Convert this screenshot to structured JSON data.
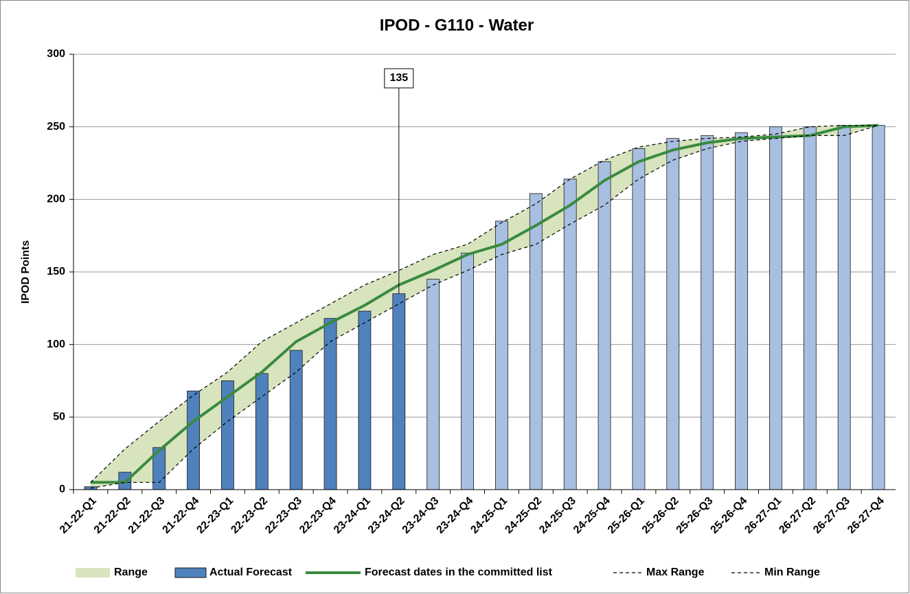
{
  "chart_data": {
    "type": "bar-line",
    "title": "IPOD - G110 - Water",
    "y_label": "IPOD Points",
    "categories": [
      "21-22-Q1",
      "21-22-Q2",
      "21-22-Q3",
      "21-22-Q4",
      "22-23-Q1",
      "22-23-Q2",
      "22-23-Q3",
      "22-23-Q4",
      "23-24-Q1",
      "23-24-Q2",
      "23-24-Q3",
      "23-24-Q4",
      "24-25-Q1",
      "24-25-Q2",
      "24-25-Q3",
      "24-25-Q4",
      "25-26-Q1",
      "25-26-Q2",
      "25-26-Q3",
      "25-26-Q4",
      "26-27-Q1",
      "26-27-Q2",
      "26-27-Q3",
      "26-27-Q4"
    ],
    "ylim": [
      0,
      300
    ],
    "yticks": [
      0,
      50,
      100,
      150,
      200,
      250,
      300
    ],
    "grid": true,
    "series": [
      {
        "name": "Range",
        "kind": "band",
        "color": "#d7e4bd"
      },
      {
        "name": "Actual Forecast",
        "kind": "bar",
        "color": "#4f81bd",
        "colors": [
          "#4f81bd",
          "#4f81bd",
          "#4f81bd",
          "#4f81bd",
          "#4f81bd",
          "#4f81bd",
          "#4f81bd",
          "#4f81bd",
          "#4f81bd",
          "#4f81bd",
          "#a7bfe0",
          "#a7bfe0",
          "#a7bfe0",
          "#a7bfe0",
          "#a7bfe0",
          "#a7bfe0",
          "#a7bfe0",
          "#a7bfe0",
          "#a7bfe0",
          "#a7bfe0",
          "#a7bfe0",
          "#a7bfe0",
          "#a7bfe0",
          "#a7bfe0"
        ],
        "values": [
          2,
          12,
          29,
          68,
          75,
          80,
          96,
          118,
          123,
          135,
          145,
          163,
          185,
          204,
          214,
          226,
          235,
          242,
          244,
          246,
          250,
          250,
          251,
          251
        ]
      },
      {
        "name": "Forecast dates in the committed list",
        "kind": "line",
        "color": "#3a8a3f",
        "values": [
          5,
          5,
          27,
          47,
          64,
          81,
          102,
          115,
          127,
          141,
          151,
          162,
          169,
          182,
          196,
          213,
          226,
          234,
          239,
          242,
          243,
          244,
          250,
          251
        ]
      },
      {
        "name": "Max Range",
        "kind": "dashed",
        "color": "#000000",
        "values": [
          5,
          28,
          47,
          65,
          81,
          102,
          115,
          128,
          141,
          151,
          162,
          169,
          184,
          197,
          214,
          227,
          236,
          240,
          242,
          243,
          245,
          250,
          251,
          251
        ]
      },
      {
        "name": "Min Range",
        "kind": "dashed",
        "color": "#000000",
        "values": [
          1,
          5,
          5,
          28,
          47,
          64,
          81,
          102,
          115,
          128,
          141,
          151,
          162,
          169,
          183,
          196,
          214,
          227,
          235,
          240,
          242,
          244,
          244,
          251
        ]
      }
    ],
    "annotation": {
      "x": "23-24-Q2",
      "label": "135"
    }
  }
}
